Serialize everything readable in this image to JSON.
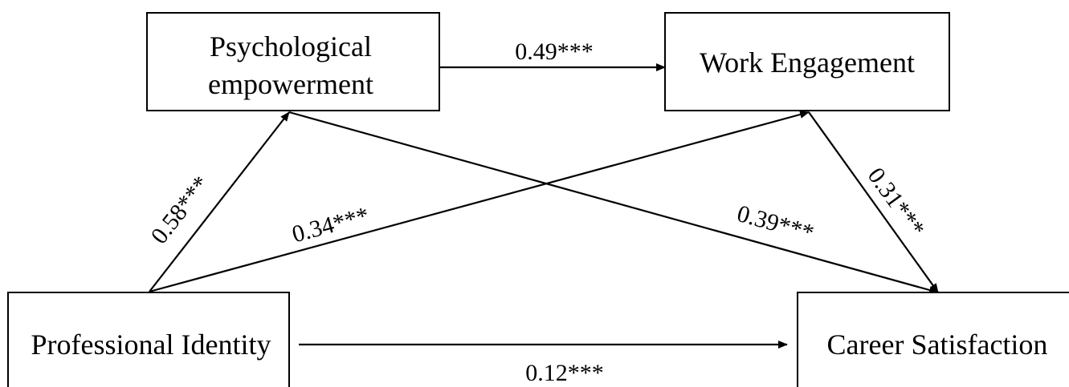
{
  "nodes": {
    "psychological_empowerment": {
      "line1": "Psychological",
      "line2": "empowerment"
    },
    "work_engagement": {
      "label": "Work Engagement"
    },
    "professional_identity": {
      "label": "Professional Identity"
    },
    "career_satisfaction": {
      "label": "Career Satisfaction"
    }
  },
  "edges": {
    "pe_to_we": "0.49***",
    "pi_to_pe": "0.58***",
    "pi_to_we": "0.34***",
    "pe_to_cs": "0.39***",
    "we_to_cs": "0.31***",
    "pi_to_cs": "0.12***"
  },
  "colors": {
    "stroke": "#000000",
    "background": "#ffffff"
  }
}
